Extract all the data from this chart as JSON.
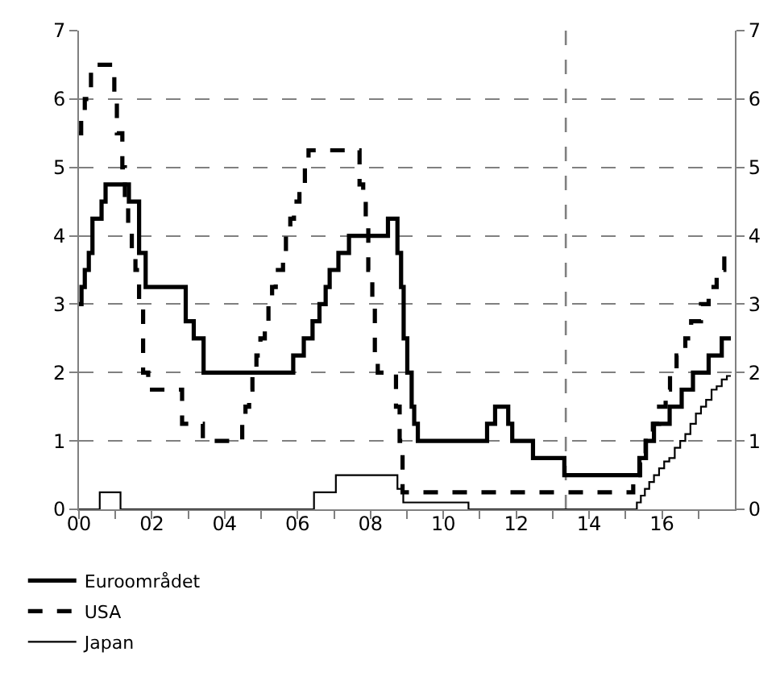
{
  "chart_data": {
    "type": "step",
    "series": [
      {
        "name": "Euroområdet",
        "color": "#000000",
        "line_style": "solid",
        "x": [
          2000.0,
          2000.07,
          2000.16,
          2000.27,
          2000.37,
          2000.62,
          2000.73,
          2001.37,
          2001.65,
          2001.83,
          2002.93,
          2003.15,
          2003.42,
          2005.88,
          2006.17,
          2006.41,
          2006.6,
          2006.77,
          2006.88,
          2007.12,
          2007.41,
          2008.48,
          2008.74,
          2008.84,
          2008.91,
          2009.01,
          2009.13,
          2009.2,
          2009.3,
          2011.2,
          2011.42,
          2011.78,
          2011.89,
          2012.46,
          2013.32,
          2015.38,
          2015.56,
          2015.78,
          2016.21,
          2016.54,
          2016.85,
          2017.28,
          2017.64,
          2017.89
        ],
        "values": [
          3.0,
          3.25,
          3.5,
          3.75,
          4.25,
          4.5,
          4.75,
          4.5,
          3.75,
          3.25,
          2.75,
          2.5,
          2.0,
          2.25,
          2.5,
          2.75,
          3.0,
          3.25,
          3.5,
          3.75,
          4.0,
          4.25,
          3.75,
          3.25,
          2.5,
          2.0,
          1.5,
          1.25,
          1.0,
          1.25,
          1.5,
          1.25,
          1.0,
          0.75,
          0.5,
          0.75,
          1.0,
          1.25,
          1.5,
          1.75,
          2.0,
          2.25,
          2.5,
          2.5
        ]
      },
      {
        "name": "USA",
        "color": "#000000",
        "line_style": "dashed",
        "x": [
          2000.0,
          2000.06,
          2000.16,
          2000.33,
          2000.97,
          2001.04,
          2001.19,
          2001.26,
          2001.35,
          2001.45,
          2001.55,
          2001.65,
          2001.76,
          2001.9,
          2002.83,
          2003.4,
          2004.48,
          2004.57,
          2004.67,
          2004.76,
          2004.87,
          2004.98,
          2005.1,
          2005.2,
          2005.3,
          2005.4,
          2005.6,
          2005.68,
          2005.8,
          2005.9,
          2006.05,
          2006.2,
          2006.3,
          2006.41,
          2007.7,
          2007.8,
          2007.87,
          2007.94,
          2008.05,
          2008.12,
          2008.2,
          2008.7,
          2008.8,
          2008.88,
          2008.95,
          2015.21,
          2015.4,
          2015.55,
          2015.75,
          2015.92,
          2016.1,
          2016.22,
          2016.4,
          2016.64,
          2016.8,
          2017.07,
          2017.28,
          2017.5,
          2017.71,
          2017.89
        ],
        "values": [
          5.5,
          5.75,
          6.0,
          6.5,
          6.0,
          5.5,
          5.0,
          4.5,
          4.0,
          3.75,
          3.5,
          3.0,
          2.0,
          1.75,
          1.25,
          1.0,
          1.25,
          1.5,
          1.75,
          2.0,
          2.25,
          2.5,
          2.75,
          3.0,
          3.25,
          3.5,
          3.75,
          4.0,
          4.25,
          4.5,
          4.75,
          5.0,
          5.25,
          5.25,
          4.75,
          4.5,
          4.25,
          3.5,
          3.0,
          2.25,
          2.0,
          1.5,
          1.0,
          0.25,
          0.25,
          0.5,
          0.75,
          1.0,
          1.25,
          1.5,
          1.75,
          2.0,
          2.25,
          2.5,
          2.75,
          3.0,
          3.25,
          3.5,
          3.75,
          3.75
        ]
      },
      {
        "name": "Japan",
        "color": "#000000",
        "line_style": "solid",
        "x": [
          2000.0,
          2000.57,
          2001.14,
          2006.45,
          2007.05,
          2008.74,
          2008.9,
          2008.98,
          2010.69,
          2015.31,
          2015.42,
          2015.53,
          2015.65,
          2015.78,
          2015.92,
          2016.06,
          2016.2,
          2016.35,
          2016.5,
          2016.64,
          2016.78,
          2016.93,
          2017.07,
          2017.21,
          2017.36,
          2017.5,
          2017.64,
          2017.78,
          2017.89
        ],
        "values": [
          0.0,
          0.25,
          0.0,
          0.25,
          0.5,
          0.3,
          0.1,
          0.1,
          0.0,
          0.1,
          0.2,
          0.3,
          0.4,
          0.5,
          0.6,
          0.7,
          0.75,
          0.9,
          1.0,
          1.1,
          1.25,
          1.4,
          1.5,
          1.6,
          1.75,
          1.8,
          1.9,
          1.95,
          1.95
        ]
      }
    ],
    "xlim": [
      2000,
      2018
    ],
    "xticks": [
      {
        "value": 2000,
        "label": "00"
      },
      {
        "value": 2001,
        "label": null
      },
      {
        "value": 2002,
        "label": "02"
      },
      {
        "value": 2003,
        "label": null
      },
      {
        "value": 2004,
        "label": "04"
      },
      {
        "value": 2005,
        "label": null
      },
      {
        "value": 2006,
        "label": "06"
      },
      {
        "value": 2007,
        "label": null
      },
      {
        "value": 2008,
        "label": "08"
      },
      {
        "value": 2009,
        "label": null
      },
      {
        "value": 2010,
        "label": "10"
      },
      {
        "value": 2011,
        "label": null
      },
      {
        "value": 2012,
        "label": "12"
      },
      {
        "value": 2013,
        "label": null
      },
      {
        "value": 2014,
        "label": "14"
      },
      {
        "value": 2015,
        "label": null
      },
      {
        "value": 2016,
        "label": "16"
      },
      {
        "value": 2017,
        "label": null
      }
    ],
    "ylim": [
      0,
      7
    ],
    "yticks": [
      0,
      1,
      2,
      3,
      4,
      5,
      6,
      7
    ],
    "y2lim": [
      0,
      7
    ],
    "y2ticks": [
      0,
      1,
      2,
      3,
      4,
      5,
      6,
      7
    ],
    "ref_lines": [
      {
        "axis": "x",
        "value": 2013.36,
        "color": "#808080",
        "line_style": "dashed"
      }
    ],
    "grid": "y",
    "legend": "bottom"
  }
}
